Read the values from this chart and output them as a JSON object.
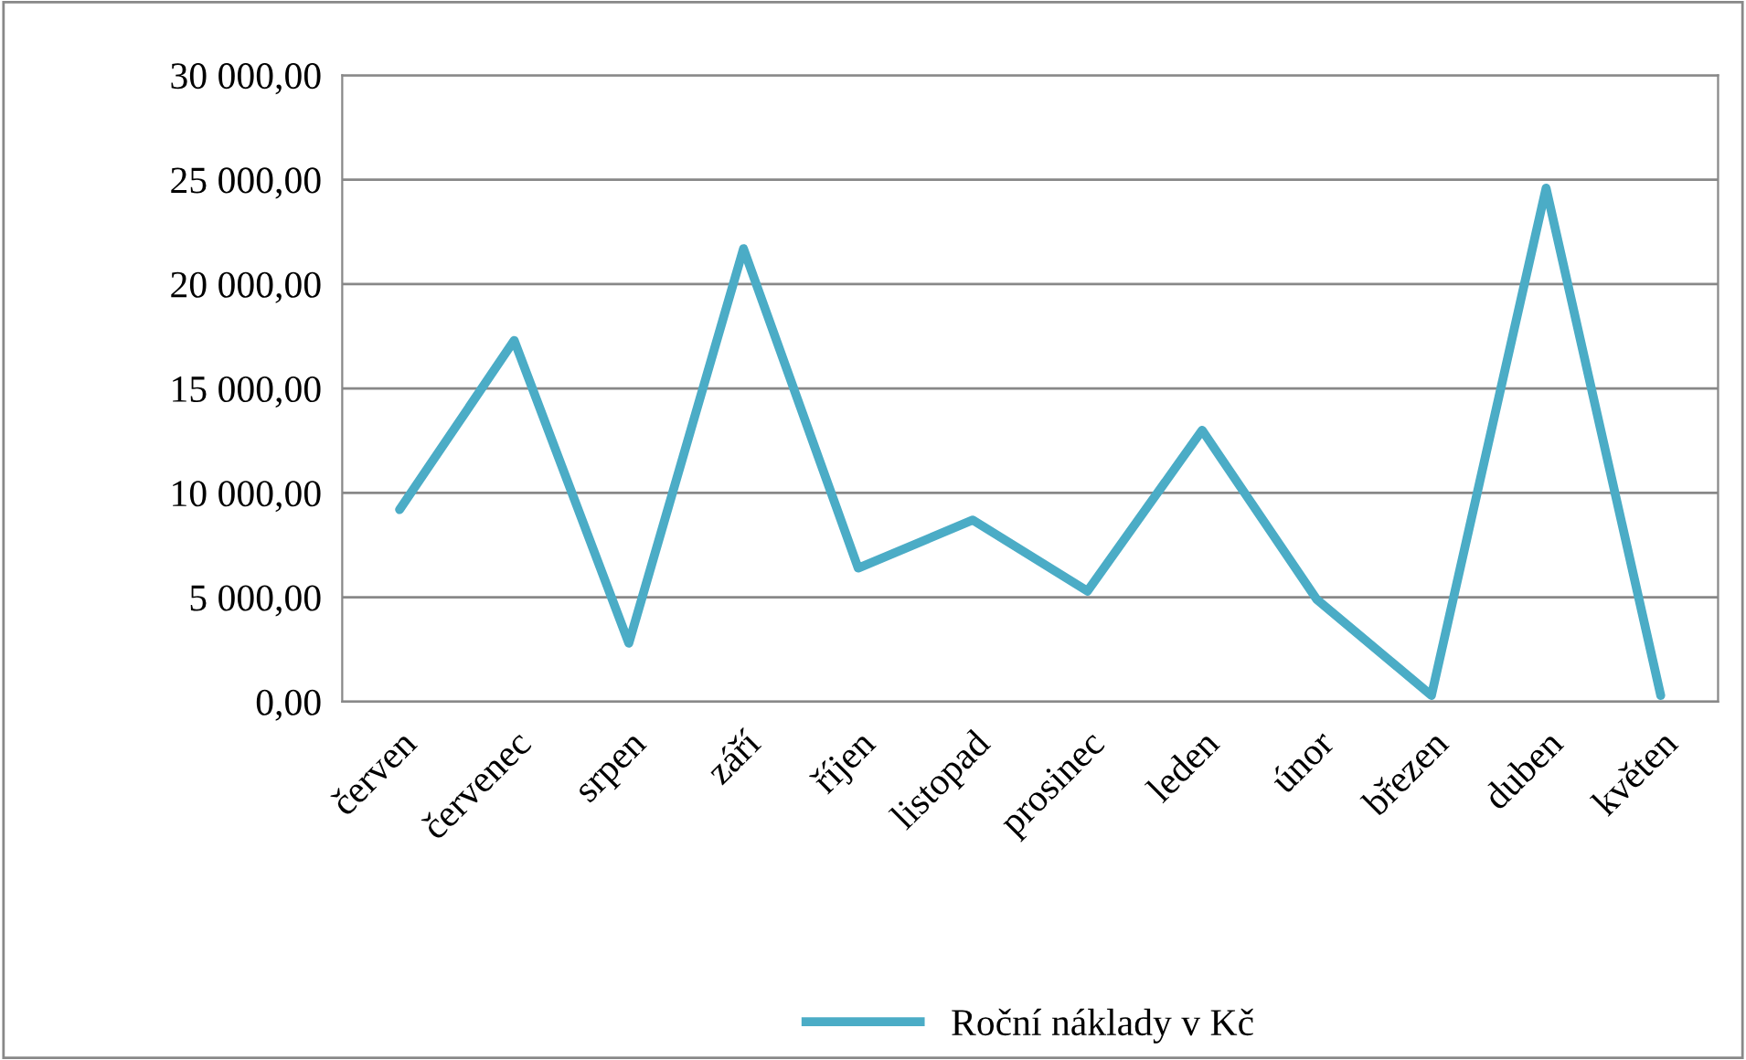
{
  "chart_data": {
    "type": "line",
    "categories": [
      "červen",
      "červenec",
      "srpen",
      "září",
      "říjen",
      "listopad",
      "prosinec",
      "leden",
      "únor",
      "březen",
      "duben",
      "květen"
    ],
    "series": [
      {
        "name": "Roční náklady v Kč",
        "color": "#4bacc6",
        "values": [
          9200,
          17300,
          2800,
          21700,
          6400,
          8700,
          5300,
          13000,
          4900,
          300,
          24600,
          300
        ]
      }
    ],
    "ylim": [
      0,
      30000
    ],
    "yticks": [
      {
        "value": 0,
        "label": "0,00"
      },
      {
        "value": 5000,
        "label": "5 000,00"
      },
      {
        "value": 10000,
        "label": "10 000,00"
      },
      {
        "value": 15000,
        "label": "15 000,00"
      },
      {
        "value": 20000,
        "label": "20 000,00"
      },
      {
        "value": 25000,
        "label": "25 000,00"
      },
      {
        "value": 30000,
        "label": "30 000,00"
      }
    ],
    "grid": "y",
    "legend": "bottom",
    "marker": "none",
    "line_style": "solid"
  }
}
